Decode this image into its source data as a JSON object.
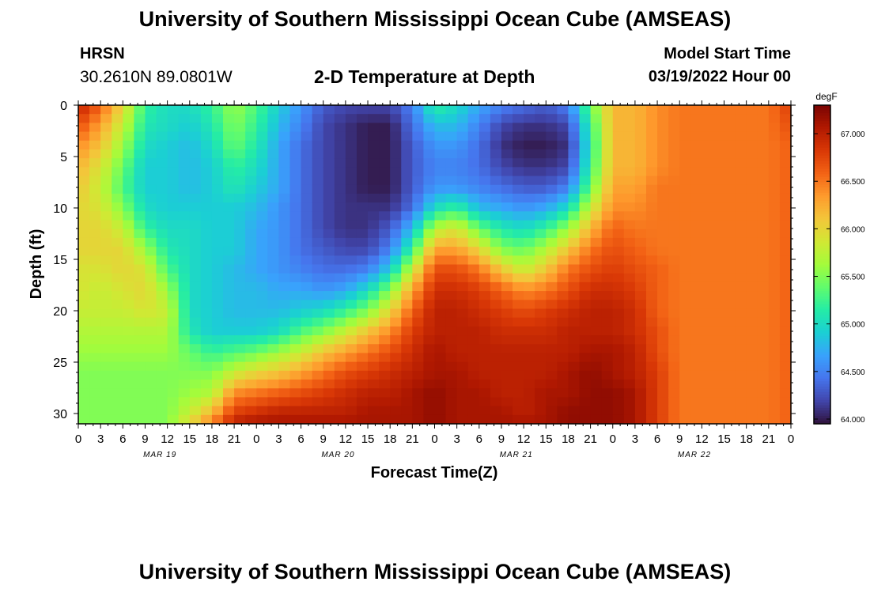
{
  "header": {
    "title": "University of Southern Mississippi Ocean Cube (AMSEAS)",
    "station_name": "HRSN",
    "station_coords": "30.2610N  89.0801W",
    "plot_title": "2-D Temperature at Depth",
    "model_start_label": "Model Start Time",
    "model_start_value": "03/19/2022 Hour 00"
  },
  "footer": {
    "title": "University of Southern Mississippi Ocean Cube (AMSEAS)"
  },
  "chart_data": {
    "type": "heatmap",
    "title": "2-D Temperature at Depth",
    "xlabel": "Forecast Time(Z)",
    "ylabel": "Depth (ft)",
    "x_hours_range": [
      0,
      96
    ],
    "x_step_hours": 3,
    "x_tick_labels": [
      "0",
      "3",
      "6",
      "9",
      "12",
      "15",
      "18",
      "21",
      "0",
      "3",
      "6",
      "9",
      "12",
      "15",
      "18",
      "21",
      "0",
      "3",
      "6",
      "9",
      "12",
      "15",
      "18",
      "21",
      "0",
      "3",
      "6",
      "9",
      "12",
      "15",
      "18",
      "21",
      "0"
    ],
    "date_labels": [
      {
        "label": "MAR 19",
        "hour": 11
      },
      {
        "label": "MAR 20",
        "hour": 35
      },
      {
        "label": "MAR 21",
        "hour": 59
      },
      {
        "label": "MAR 22",
        "hour": 83
      }
    ],
    "y_range": [
      0,
      31
    ],
    "y_ticks": [
      0,
      5,
      10,
      15,
      20,
      25,
      30
    ],
    "colorbar": {
      "unit": "degF",
      "range": [
        63.95,
        67.3
      ],
      "ticks": [
        "64.000",
        "64.500",
        "65.000",
        "65.500",
        "66.000",
        "66.500",
        "67.000"
      ],
      "tick_values": [
        64.0,
        64.5,
        65.0,
        65.5,
        66.0,
        66.5,
        67.0
      ],
      "colors": [
        "#30123b",
        "#4145ab",
        "#4675ed",
        "#39a2fc",
        "#1bcfd4",
        "#24eca6",
        "#61fc6c",
        "#a4fc3b",
        "#d1e834",
        "#f3c63a",
        "#fe9b2d",
        "#f36315",
        "#d93806",
        "#b11901",
        "#7a0402"
      ]
    },
    "depths": [
      0,
      2,
      4,
      6,
      8,
      10,
      12,
      14,
      16,
      18,
      20,
      22,
      24,
      26,
      28,
      30,
      31
    ],
    "series": [
      {
        "hour": 0,
        "values": [
          67.0,
          66.7,
          66.4,
          66.2,
          66.1,
          66.0,
          66.0,
          66.0,
          65.9,
          65.9,
          65.8,
          65.7,
          65.6,
          65.5,
          65.5,
          65.5,
          65.5
        ]
      },
      {
        "hour": 3,
        "values": [
          66.6,
          66.3,
          66.1,
          65.9,
          65.8,
          65.9,
          66.0,
          66.0,
          65.9,
          65.8,
          65.8,
          65.7,
          65.6,
          65.5,
          65.5,
          65.5,
          65.5
        ]
      },
      {
        "hour": 6,
        "values": [
          66.0,
          65.8,
          65.6,
          65.4,
          65.3,
          65.5,
          65.8,
          66.0,
          66.0,
          65.9,
          65.8,
          65.7,
          65.6,
          65.5,
          65.5,
          65.5,
          65.5
        ]
      },
      {
        "hour": 9,
        "values": [
          65.2,
          65.1,
          65.0,
          64.9,
          64.9,
          65.0,
          65.2,
          65.6,
          65.9,
          66.0,
          65.9,
          65.7,
          65.6,
          65.5,
          65.5,
          65.5,
          65.5
        ]
      },
      {
        "hour": 12,
        "values": [
          65.0,
          65.0,
          64.9,
          64.9,
          64.9,
          64.9,
          65.0,
          65.1,
          65.3,
          65.6,
          65.8,
          65.7,
          65.6,
          65.5,
          65.5,
          65.5,
          65.5
        ]
      },
      {
        "hour": 15,
        "values": [
          65.0,
          64.9,
          64.8,
          64.8,
          64.8,
          64.9,
          65.0,
          65.0,
          65.0,
          65.0,
          65.0,
          65.1,
          65.4,
          65.5,
          65.6,
          65.8,
          66.0
        ]
      },
      {
        "hour": 18,
        "values": [
          65.2,
          65.1,
          65.0,
          64.9,
          64.9,
          64.9,
          64.9,
          64.9,
          64.9,
          64.9,
          64.9,
          64.9,
          65.2,
          65.5,
          65.7,
          66.2,
          66.5
        ]
      },
      {
        "hour": 21,
        "values": [
          65.6,
          65.5,
          65.4,
          65.2,
          65.1,
          64.9,
          64.9,
          64.9,
          64.8,
          64.8,
          64.8,
          64.9,
          65.3,
          65.8,
          66.4,
          66.8,
          67.0
        ]
      },
      {
        "hour": 24,
        "values": [
          65.3,
          65.2,
          65.1,
          65.0,
          64.9,
          64.8,
          64.7,
          64.7,
          64.7,
          64.8,
          64.8,
          64.9,
          65.4,
          66.0,
          66.5,
          66.9,
          67.1
        ]
      },
      {
        "hour": 27,
        "values": [
          64.9,
          64.8,
          64.7,
          64.7,
          64.7,
          64.6,
          64.6,
          64.6,
          64.6,
          64.7,
          64.8,
          65.0,
          65.6,
          66.1,
          66.6,
          67.0,
          67.1
        ]
      },
      {
        "hour": 30,
        "values": [
          64.6,
          64.5,
          64.4,
          64.4,
          64.4,
          64.4,
          64.4,
          64.4,
          64.5,
          64.7,
          64.9,
          65.3,
          65.8,
          66.3,
          66.7,
          67.0,
          67.1
        ]
      },
      {
        "hour": 33,
        "values": [
          64.3,
          64.2,
          64.2,
          64.2,
          64.2,
          64.2,
          64.2,
          64.3,
          64.4,
          64.6,
          65.0,
          65.5,
          66.1,
          66.5,
          66.8,
          67.0,
          67.1
        ]
      },
      {
        "hour": 36,
        "values": [
          64.2,
          64.1,
          64.1,
          64.1,
          64.1,
          64.1,
          64.1,
          64.2,
          64.4,
          64.7,
          65.2,
          65.8,
          66.3,
          66.7,
          66.9,
          67.0,
          67.1
        ]
      },
      {
        "hour": 39,
        "values": [
          64.2,
          64.0,
          64.0,
          64.0,
          64.0,
          64.1,
          64.1,
          64.2,
          64.5,
          65.0,
          65.5,
          66.1,
          66.5,
          66.8,
          67.0,
          67.1,
          67.1
        ]
      },
      {
        "hour": 42,
        "values": [
          64.2,
          64.0,
          64.0,
          64.0,
          64.0,
          64.1,
          64.3,
          64.5,
          64.9,
          65.5,
          66.0,
          66.4,
          66.7,
          66.9,
          67.0,
          67.1,
          67.1
        ]
      },
      {
        "hour": 45,
        "values": [
          64.5,
          64.4,
          64.3,
          64.3,
          64.3,
          64.4,
          64.8,
          65.2,
          65.8,
          66.3,
          66.6,
          66.8,
          66.9,
          67.0,
          67.1,
          67.1,
          67.1
        ]
      },
      {
        "hour": 48,
        "values": [
          65.2,
          64.8,
          64.6,
          64.5,
          64.6,
          65.0,
          65.7,
          66.3,
          66.7,
          66.9,
          67.0,
          67.0,
          67.1,
          67.1,
          67.2,
          67.2,
          67.2
        ]
      },
      {
        "hour": 51,
        "values": [
          65.0,
          64.8,
          64.6,
          64.5,
          64.6,
          65.2,
          65.9,
          66.3,
          66.7,
          66.9,
          67.0,
          67.0,
          67.0,
          67.1,
          67.1,
          67.1,
          67.1
        ]
      },
      {
        "hour": 54,
        "values": [
          64.7,
          64.5,
          64.4,
          64.4,
          64.5,
          64.8,
          65.4,
          66.0,
          66.5,
          66.8,
          66.9,
          67.0,
          67.0,
          67.0,
          67.1,
          67.1,
          67.1
        ]
      },
      {
        "hour": 57,
        "values": [
          64.5,
          64.2,
          64.1,
          64.2,
          64.4,
          64.7,
          65.1,
          65.5,
          66.1,
          66.6,
          66.8,
          66.9,
          67.0,
          67.0,
          67.0,
          67.1,
          67.1
        ]
      },
      {
        "hour": 60,
        "values": [
          64.4,
          64.1,
          64.0,
          64.1,
          64.3,
          64.6,
          65.0,
          65.4,
          65.8,
          66.4,
          66.7,
          66.9,
          67.0,
          67.0,
          67.0,
          67.0,
          67.1
        ]
      },
      {
        "hour": 63,
        "values": [
          64.3,
          64.1,
          64.0,
          64.1,
          64.3,
          64.7,
          65.2,
          65.7,
          66.1,
          66.5,
          66.8,
          66.9,
          67.0,
          67.0,
          67.1,
          67.1,
          67.1
        ]
      },
      {
        "hour": 66,
        "values": [
          64.5,
          64.2,
          64.1,
          64.2,
          64.5,
          65.0,
          65.6,
          66.1,
          66.5,
          66.7,
          66.9,
          67.0,
          67.0,
          67.1,
          67.1,
          67.2,
          67.2
        ]
      },
      {
        "hour": 69,
        "values": [
          65.4,
          65.2,
          65.1,
          65.2,
          65.4,
          65.8,
          66.2,
          66.5,
          66.7,
          66.9,
          67.0,
          67.0,
          67.1,
          67.2,
          67.2,
          67.2,
          67.2
        ]
      },
      {
        "hour": 72,
        "values": [
          66.2,
          66.2,
          66.2,
          66.2,
          66.3,
          66.4,
          66.6,
          66.7,
          66.8,
          66.9,
          67.0,
          67.0,
          67.1,
          67.1,
          67.2,
          67.2,
          67.2
        ]
      },
      {
        "hour": 75,
        "values": [
          66.2,
          66.2,
          66.2,
          66.2,
          66.3,
          66.4,
          66.5,
          66.6,
          66.7,
          66.8,
          66.9,
          66.9,
          67.0,
          67.0,
          67.1,
          67.1,
          67.1
        ]
      },
      {
        "hour": 78,
        "values": [
          66.4,
          66.4,
          66.4,
          66.4,
          66.5,
          66.5,
          66.5,
          66.5,
          66.6,
          66.6,
          66.6,
          66.7,
          66.7,
          66.8,
          66.8,
          66.8,
          66.8
        ]
      },
      {
        "hour": 81,
        "values": [
          66.5,
          66.5,
          66.5,
          66.5,
          66.5,
          66.5,
          66.5,
          66.5,
          66.5,
          66.5,
          66.5,
          66.5,
          66.5,
          66.5,
          66.5,
          66.5,
          66.5
        ]
      },
      {
        "hour": 84,
        "values": [
          66.5,
          66.5,
          66.5,
          66.5,
          66.5,
          66.5,
          66.5,
          66.5,
          66.5,
          66.5,
          66.5,
          66.5,
          66.5,
          66.5,
          66.5,
          66.5,
          66.5
        ]
      },
      {
        "hour": 87,
        "values": [
          66.5,
          66.5,
          66.5,
          66.5,
          66.5,
          66.5,
          66.5,
          66.5,
          66.5,
          66.5,
          66.5,
          66.5,
          66.5,
          66.5,
          66.5,
          66.5,
          66.5
        ]
      },
      {
        "hour": 90,
        "values": [
          66.5,
          66.5,
          66.5,
          66.5,
          66.5,
          66.5,
          66.5,
          66.5,
          66.5,
          66.5,
          66.5,
          66.5,
          66.5,
          66.5,
          66.5,
          66.5,
          66.5
        ]
      },
      {
        "hour": 93,
        "values": [
          66.5,
          66.5,
          66.5,
          66.5,
          66.5,
          66.5,
          66.5,
          66.5,
          66.5,
          66.5,
          66.5,
          66.5,
          66.5,
          66.5,
          66.5,
          66.5,
          66.5
        ]
      },
      {
        "hour": 96,
        "values": [
          66.8,
          66.7,
          66.6,
          66.6,
          66.6,
          66.6,
          66.6,
          66.6,
          66.6,
          66.6,
          66.6,
          66.6,
          66.6,
          66.6,
          66.6,
          66.6,
          66.6
        ]
      }
    ]
  }
}
